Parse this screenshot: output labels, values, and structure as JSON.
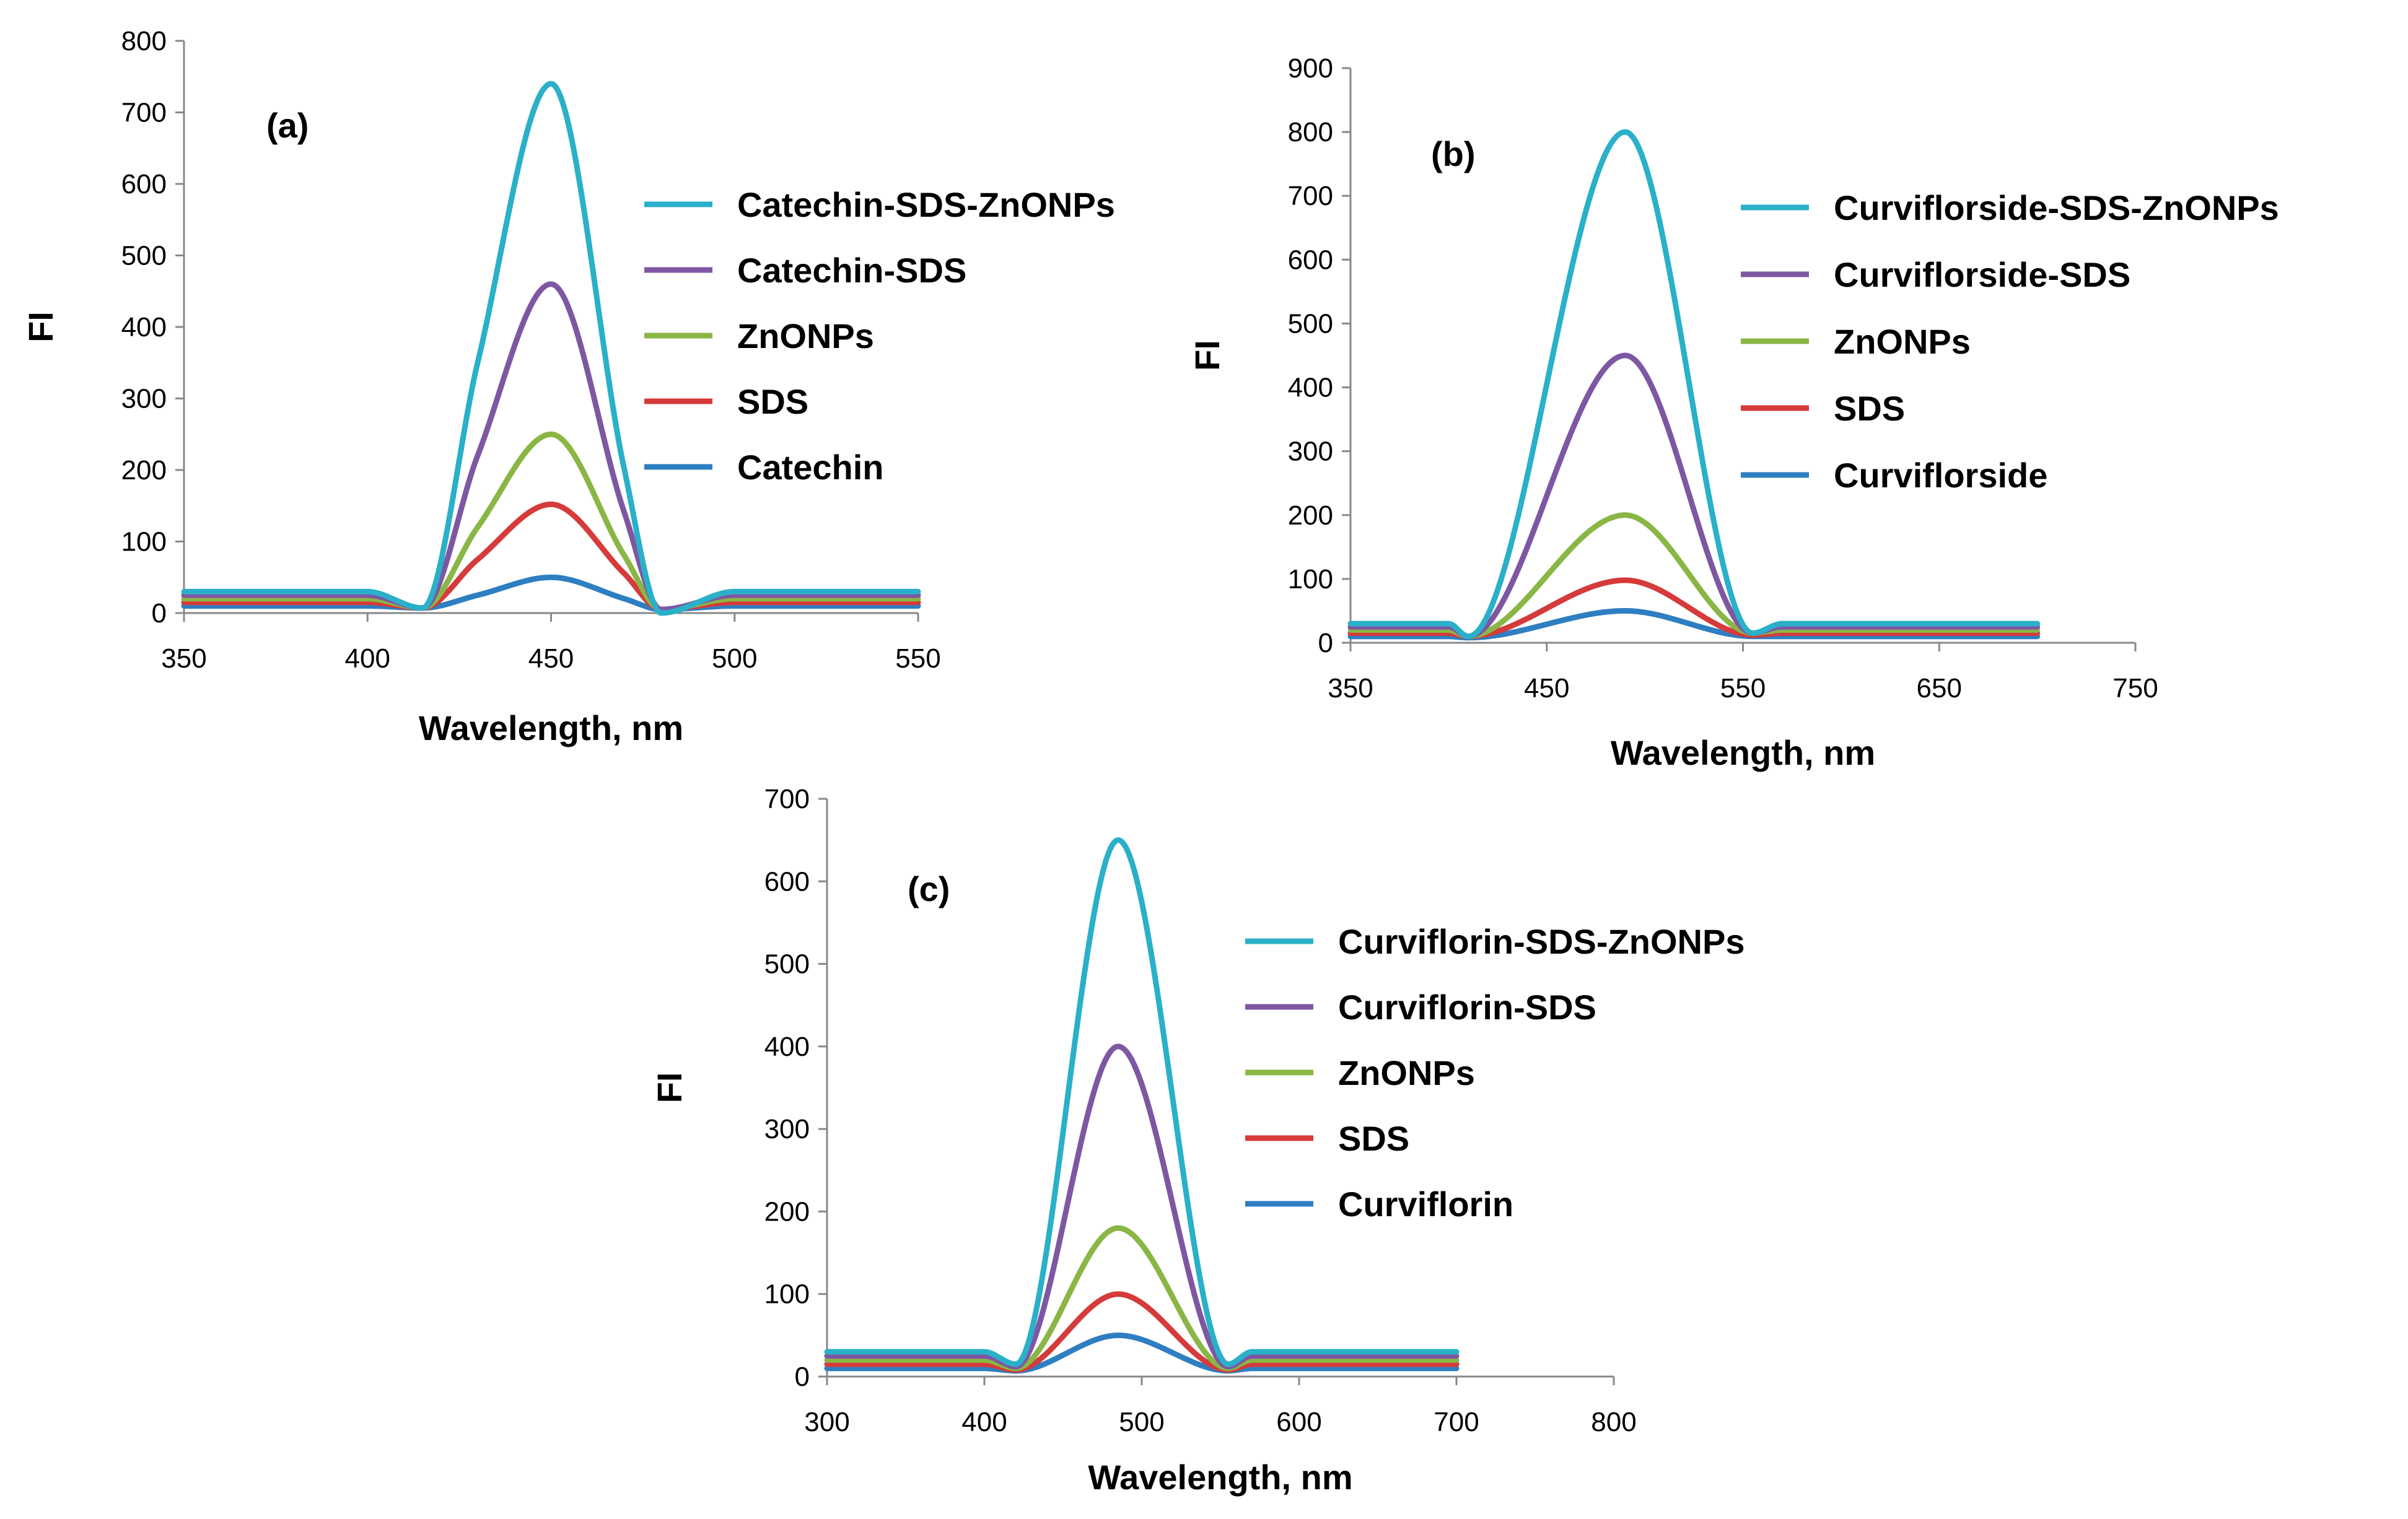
{
  "colors": {
    "series_1": "#2ab0c8",
    "series_2": "#7e57a3",
    "series_3": "#8ab645",
    "series_4": "#d63a3a",
    "series_5": "#2e7ec2"
  },
  "chart_data": [
    {
      "type": "line",
      "panel_label": "(a)",
      "xlabel": "Wavelength, nm",
      "ylabel": "FI",
      "xlim": [
        350,
        550
      ],
      "ylim": [
        0,
        800
      ],
      "xticks": [
        350,
        400,
        450,
        500,
        550
      ],
      "yticks": [
        0,
        100,
        200,
        300,
        400,
        500,
        600,
        700,
        800
      ],
      "legend_position": "right",
      "series": [
        {
          "name": "Catechin-SDS-ZnONPs",
          "x": [
            350,
            400,
            415,
            430,
            450,
            470,
            480,
            500,
            550
          ],
          "values": [
            30,
            30,
            7,
            350,
            740,
            200,
            0,
            30,
            30
          ]
        },
        {
          "name": "Catechin-SDS",
          "x": [
            350,
            400,
            415,
            430,
            450,
            470,
            480,
            500,
            550
          ],
          "values": [
            25,
            25,
            7,
            220,
            460,
            140,
            5,
            25,
            25
          ]
        },
        {
          "name": "ZnONPs",
          "x": [
            350,
            400,
            415,
            430,
            450,
            470,
            480,
            500,
            550
          ],
          "values": [
            20,
            20,
            7,
            120,
            250,
            80,
            5,
            20,
            20
          ]
        },
        {
          "name": "SDS",
          "x": [
            350,
            400,
            415,
            430,
            450,
            470,
            480,
            500,
            550
          ],
          "values": [
            15,
            15,
            7,
            75,
            152,
            55,
            5,
            15,
            15
          ]
        },
        {
          "name": "Catechin",
          "x": [
            350,
            400,
            415,
            430,
            450,
            470,
            480,
            500,
            550
          ],
          "values": [
            10,
            10,
            7,
            25,
            50,
            20,
            5,
            10,
            10
          ]
        }
      ]
    },
    {
      "type": "line",
      "panel_label": "(b)",
      "xlabel": "Wavelength, nm",
      "ylabel": "FI",
      "xlim": [
        350,
        750
      ],
      "ylim": [
        0,
        900
      ],
      "xticks": [
        350,
        450,
        550,
        650,
        750
      ],
      "yticks": [
        0,
        100,
        200,
        300,
        400,
        500,
        600,
        700,
        800,
        900
      ],
      "legend_position": "right",
      "series": [
        {
          "name": "Curviflorside-SDS-ZnONPs",
          "x": [
            350,
            400,
            410,
            490,
            555,
            570,
            700
          ],
          "values": [
            30,
            30,
            10,
            800,
            15,
            30,
            30
          ]
        },
        {
          "name": "Curviflorside-SDS",
          "x": [
            350,
            400,
            410,
            490,
            555,
            570,
            700
          ],
          "values": [
            25,
            25,
            10,
            450,
            15,
            25,
            25
          ]
        },
        {
          "name": "ZnONPs",
          "x": [
            350,
            400,
            410,
            490,
            555,
            570,
            700
          ],
          "values": [
            20,
            20,
            10,
            200,
            15,
            20,
            20
          ]
        },
        {
          "name": "SDS",
          "x": [
            350,
            400,
            410,
            490,
            555,
            570,
            700
          ],
          "values": [
            15,
            15,
            10,
            98,
            12,
            15,
            15
          ]
        },
        {
          "name": "Curviflorside",
          "x": [
            350,
            400,
            410,
            490,
            555,
            570,
            700
          ],
          "values": [
            10,
            10,
            8,
            50,
            10,
            10,
            10
          ]
        }
      ]
    },
    {
      "type": "line",
      "panel_label": "(c)",
      "xlabel": "Wavelength, nm",
      "ylabel": "FI",
      "xlim": [
        300,
        800
      ],
      "ylim": [
        0,
        700
      ],
      "xticks": [
        300,
        400,
        500,
        600,
        700,
        800
      ],
      "yticks": [
        0,
        100,
        200,
        300,
        400,
        500,
        600,
        700
      ],
      "legend_position": "right",
      "series": [
        {
          "name": "Curviflorin-SDS-ZnONPs",
          "x": [
            300,
            400,
            420,
            485,
            555,
            570,
            700
          ],
          "values": [
            30,
            30,
            15,
            650,
            15,
            30,
            30
          ]
        },
        {
          "name": "Curviflorin-SDS",
          "x": [
            300,
            400,
            420,
            485,
            555,
            570,
            700
          ],
          "values": [
            25,
            25,
            12,
            400,
            12,
            25,
            25
          ]
        },
        {
          "name": "ZnONPs",
          "x": [
            300,
            400,
            420,
            485,
            555,
            570,
            700
          ],
          "values": [
            20,
            20,
            10,
            180,
            10,
            20,
            20
          ]
        },
        {
          "name": "SDS",
          "x": [
            300,
            400,
            420,
            485,
            555,
            570,
            700
          ],
          "values": [
            15,
            15,
            8,
            100,
            8,
            15,
            15
          ]
        },
        {
          "name": "Curviflorin",
          "x": [
            300,
            400,
            420,
            485,
            555,
            570,
            700
          ],
          "values": [
            10,
            10,
            7,
            50,
            7,
            10,
            10
          ]
        }
      ]
    }
  ]
}
